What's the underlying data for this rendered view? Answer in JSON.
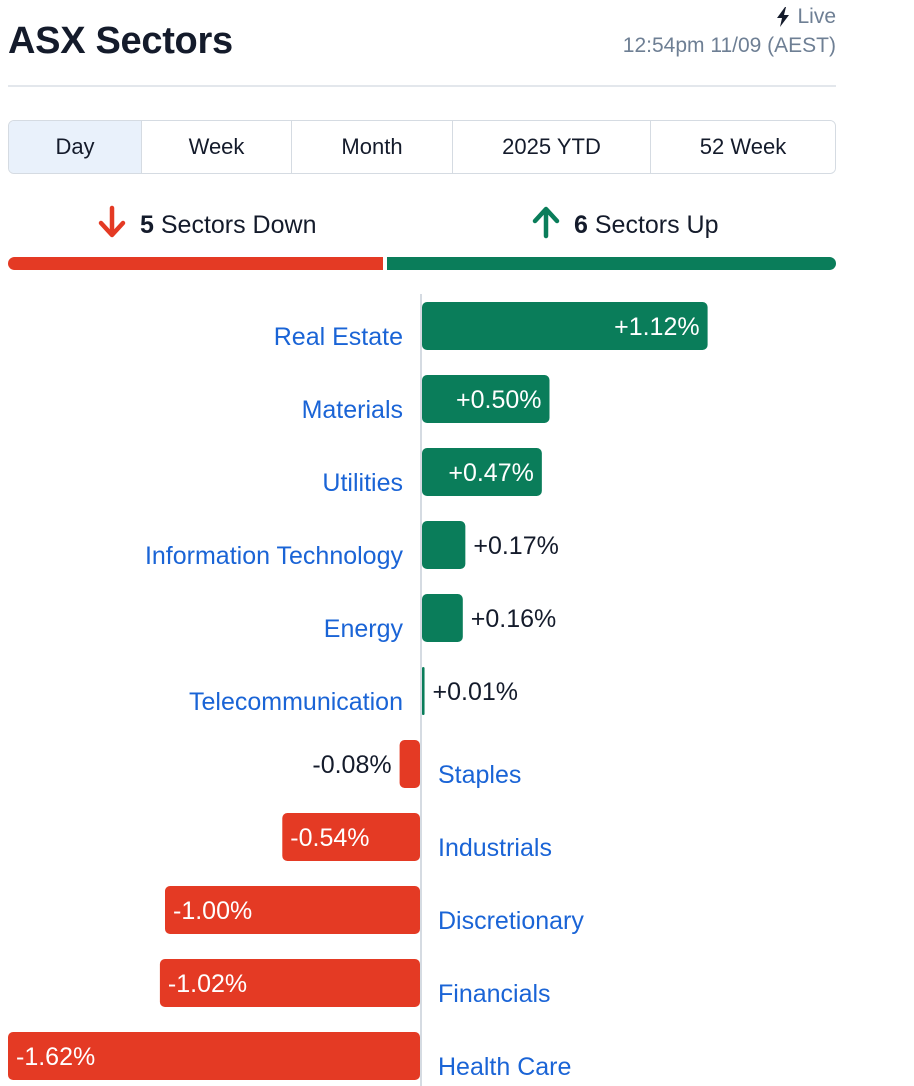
{
  "header": {
    "title": "ASX Sectors",
    "live_label": "Live",
    "timestamp": "12:54pm 11/09 (AEST)"
  },
  "tabs": [
    {
      "label": "Day",
      "active": true
    },
    {
      "label": "Week",
      "active": false
    },
    {
      "label": "Month",
      "active": false
    },
    {
      "label": "2025 YTD",
      "active": false
    },
    {
      "label": "52 Week",
      "active": false
    }
  ],
  "summary": {
    "down_count": "5",
    "down_text": "Sectors Down",
    "up_count": "6",
    "up_text": "Sectors Up"
  },
  "colors": {
    "up": "#0a7d5a",
    "down": "#e43a24",
    "label": "#1a64d6",
    "tab_active_bg": "#e9f1fb"
  },
  "chart_data": {
    "type": "bar",
    "orientation": "horizontal",
    "categories": [
      "Real Estate",
      "Materials",
      "Utilities",
      "Information Technology",
      "Energy",
      "Telecommunication",
      "Staples",
      "Industrials",
      "Discretionary",
      "Financials",
      "Health Care"
    ],
    "values": [
      1.12,
      0.5,
      0.47,
      0.17,
      0.16,
      0.01,
      -0.08,
      -0.54,
      -1.0,
      -1.02,
      -1.62
    ],
    "value_labels": [
      "+1.12%",
      "+0.50%",
      "+0.47%",
      "+0.17%",
      "+0.16%",
      "+0.01%",
      "-0.08%",
      "-0.54%",
      "-1.00%",
      "-1.02%",
      "-1.62%"
    ],
    "unit": "%"
  }
}
